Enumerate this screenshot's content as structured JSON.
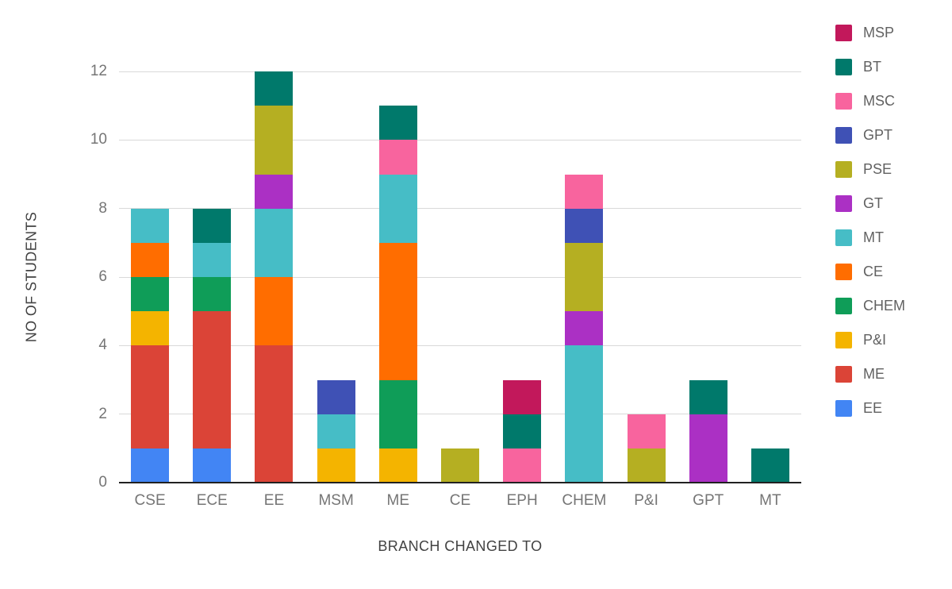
{
  "chart_data": {
    "type": "bar",
    "stacked": true,
    "title": "",
    "xlabel": "BRANCH CHANGED TO",
    "ylabel": "NO OF STUDENTS",
    "categories": [
      "CSE",
      "ECE",
      "EE",
      "MSM",
      "ME",
      "CE",
      "EPH",
      "CHEM",
      "P&I",
      "GPT",
      "MT"
    ],
    "ylim": [
      0,
      12
    ],
    "yticks": [
      0,
      2,
      4,
      6,
      8,
      10,
      12
    ],
    "grid": true,
    "grid_color": "#d9d9d9",
    "baseline_color": "#212121",
    "tick_label_color": "#757575",
    "axis_title_color": "#424242",
    "legend_position": "right",
    "legend_order": [
      "MSP",
      "BT",
      "MSC",
      "GPT",
      "PSE",
      "GT",
      "MT",
      "CE",
      "CHEM",
      "P&I",
      "ME",
      "EE"
    ],
    "series": [
      {
        "name": "EE",
        "color": "#4285F4",
        "values": [
          1,
          1,
          0,
          0,
          0,
          0,
          0,
          0,
          0,
          0,
          0
        ]
      },
      {
        "name": "ME",
        "color": "#DB4437",
        "values": [
          3,
          4,
          4,
          0,
          0,
          0,
          0,
          0,
          0,
          0,
          0
        ]
      },
      {
        "name": "P&I",
        "color": "#F4B400",
        "values": [
          1,
          0,
          0,
          1,
          1,
          0,
          0,
          0,
          0,
          0,
          0
        ]
      },
      {
        "name": "CHEM",
        "color": "#0F9D58",
        "values": [
          1,
          1,
          0,
          0,
          2,
          0,
          0,
          0,
          0,
          0,
          0
        ]
      },
      {
        "name": "CE",
        "color": "#FF6D00",
        "values": [
          1,
          0,
          2,
          0,
          4,
          0,
          0,
          0,
          0,
          0,
          0
        ]
      },
      {
        "name": "MT",
        "color": "#46BDC6",
        "values": [
          1,
          1,
          2,
          1,
          2,
          0,
          0,
          4,
          0,
          0,
          0
        ]
      },
      {
        "name": "GT",
        "color": "#AB30C4",
        "values": [
          0,
          0,
          1,
          0,
          0,
          0,
          0,
          1,
          0,
          2,
          0
        ]
      },
      {
        "name": "PSE",
        "color": "#B5AF22",
        "values": [
          0,
          0,
          2,
          0,
          0,
          1,
          0,
          2,
          1,
          0,
          0
        ]
      },
      {
        "name": "GPT",
        "color": "#3F51B5",
        "values": [
          0,
          0,
          0,
          1,
          0,
          0,
          0,
          1,
          0,
          0,
          0
        ]
      },
      {
        "name": "MSC",
        "color": "#F8649E",
        "values": [
          0,
          0,
          0,
          0,
          1,
          0,
          1,
          1,
          1,
          0,
          0
        ]
      },
      {
        "name": "BT",
        "color": "#00796B",
        "values": [
          0,
          1,
          1,
          0,
          1,
          0,
          1,
          0,
          0,
          1,
          1
        ]
      },
      {
        "name": "MSP",
        "color": "#C2185B",
        "values": [
          0,
          0,
          0,
          0,
          0,
          0,
          1,
          0,
          0,
          0,
          0
        ]
      }
    ]
  }
}
